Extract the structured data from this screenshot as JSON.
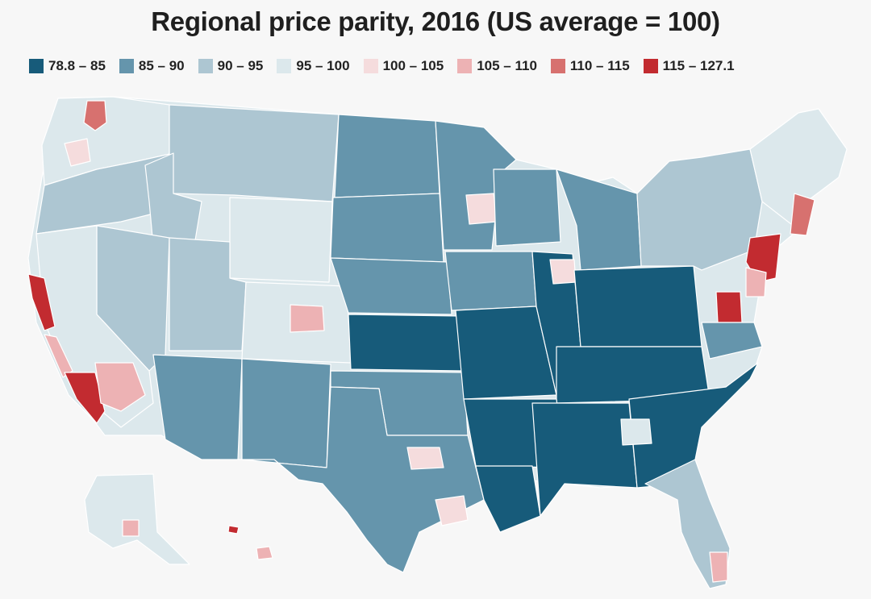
{
  "title": "Regional price parity, 2016 (US average = 100)",
  "legend": [
    {
      "label": "78.8 – 85",
      "color": "#175b7a"
    },
    {
      "label": "85 – 90",
      "color": "#6595ac"
    },
    {
      "label": "90 – 95",
      "color": "#adc6d2"
    },
    {
      "label": "95 – 100",
      "color": "#dce8ec"
    },
    {
      "label": "100 – 105",
      "color": "#f5dcdd"
    },
    {
      "label": "105 – 110",
      "color": "#edb2b4"
    },
    {
      "label": "110 – 115",
      "color": "#d7716f"
    },
    {
      "label": "115 – 127.1",
      "color": "#c22b30"
    }
  ]
}
